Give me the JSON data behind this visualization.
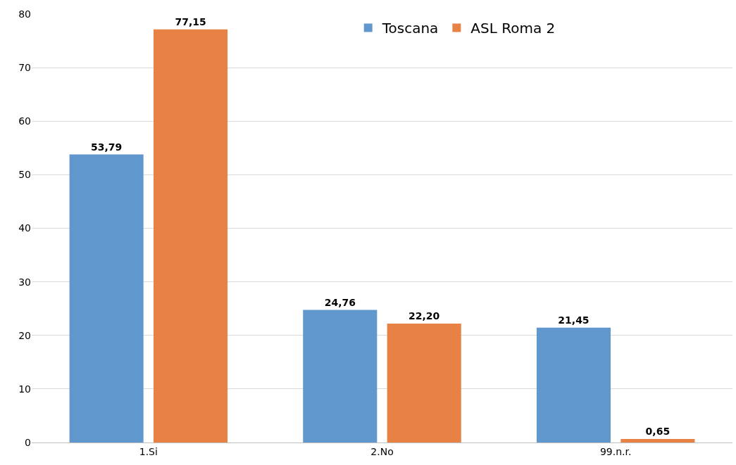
{
  "chart_data": {
    "type": "bar",
    "categories": [
      "1.Si",
      "2.No",
      "99.n.r."
    ],
    "series": [
      {
        "name": "Toscana",
        "color": "#6097cc",
        "values": [
          53.79,
          24.76,
          21.45
        ],
        "value_labels": [
          "53,79",
          "24,76",
          "21,45"
        ]
      },
      {
        "name": "ASL Roma 2",
        "color": "#e88244",
        "values": [
          77.15,
          22.2,
          0.65
        ],
        "value_labels": [
          "77,15",
          "22,20",
          "0,65"
        ]
      }
    ],
    "ylim": [
      0,
      80
    ],
    "yticks": [
      0,
      10,
      20,
      30,
      40,
      50,
      60,
      70,
      80
    ],
    "grid": "y",
    "legend": "top"
  }
}
